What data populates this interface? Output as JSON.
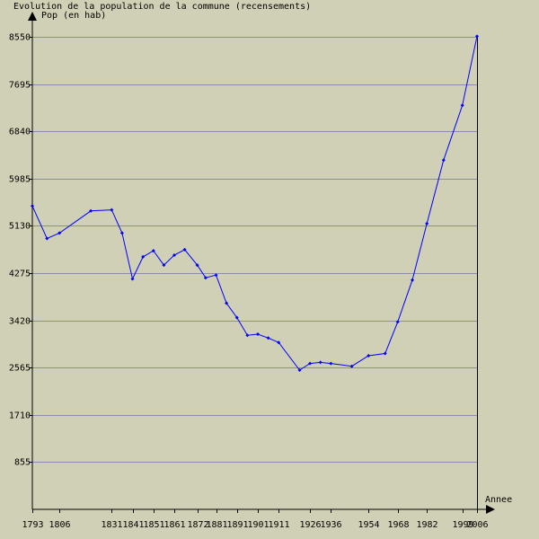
{
  "chart_data": {
    "type": "line",
    "title": "Evolution de la population de la commune (recensements)",
    "ylabel": "Pop (en hab)",
    "xlabel": "Annee",
    "ylim": [
      0,
      8550
    ],
    "y_ticks": [
      "855",
      "1710",
      "2565",
      "3420",
      "4275",
      "5130",
      "5985",
      "6840",
      "7695",
      "8550"
    ],
    "x_ticks": [
      "1793",
      "1806",
      "1831",
      "1841",
      "1851",
      "1861",
      "1872",
      "1881",
      "1891",
      "1901",
      "1911",
      "1926",
      "1936",
      "1954",
      "1968",
      "1982",
      "1999",
      "2006"
    ],
    "grid": true,
    "colors": {
      "background": "#d0d0b6",
      "line": "#0000ff",
      "grid": "#8c8ca6",
      "axis": "#000000"
    },
    "series": [
      {
        "values": [
          {
            "x": "1793",
            "y": 5490
          },
          {
            "x": "1800",
            "y": 4900
          },
          {
            "x": "1806",
            "y": 5000
          },
          {
            "x": "1821",
            "y": 5400
          },
          {
            "x": "1831",
            "y": 5420
          },
          {
            "x": "1836",
            "y": 5000
          },
          {
            "x": "1841",
            "y": 4170
          },
          {
            "x": "1846",
            "y": 4570
          },
          {
            "x": "1851",
            "y": 4680
          },
          {
            "x": "1856",
            "y": 4420
          },
          {
            "x": "1861",
            "y": 4600
          },
          {
            "x": "1866",
            "y": 4700
          },
          {
            "x": "1872",
            "y": 4420
          },
          {
            "x": "1876",
            "y": 4190
          },
          {
            "x": "1881",
            "y": 4240
          },
          {
            "x": "1886",
            "y": 3730
          },
          {
            "x": "1891",
            "y": 3470
          },
          {
            "x": "1896",
            "y": 3150
          },
          {
            "x": "1901",
            "y": 3170
          },
          {
            "x": "1906",
            "y": 3100
          },
          {
            "x": "1911",
            "y": 3020
          },
          {
            "x": "1921",
            "y": 2520
          },
          {
            "x": "1926",
            "y": 2640
          },
          {
            "x": "1931",
            "y": 2660
          },
          {
            "x": "1936",
            "y": 2640
          },
          {
            "x": "1946",
            "y": 2590
          },
          {
            "x": "1954",
            "y": 2780
          },
          {
            "x": "1962",
            "y": 2820
          },
          {
            "x": "1968",
            "y": 3390
          },
          {
            "x": "1975",
            "y": 4150
          },
          {
            "x": "1982",
            "y": 5170
          },
          {
            "x": "1990",
            "y": 6320
          },
          {
            "x": "1999",
            "y": 7310
          },
          {
            "x": "2006",
            "y": 8560
          }
        ]
      }
    ]
  }
}
